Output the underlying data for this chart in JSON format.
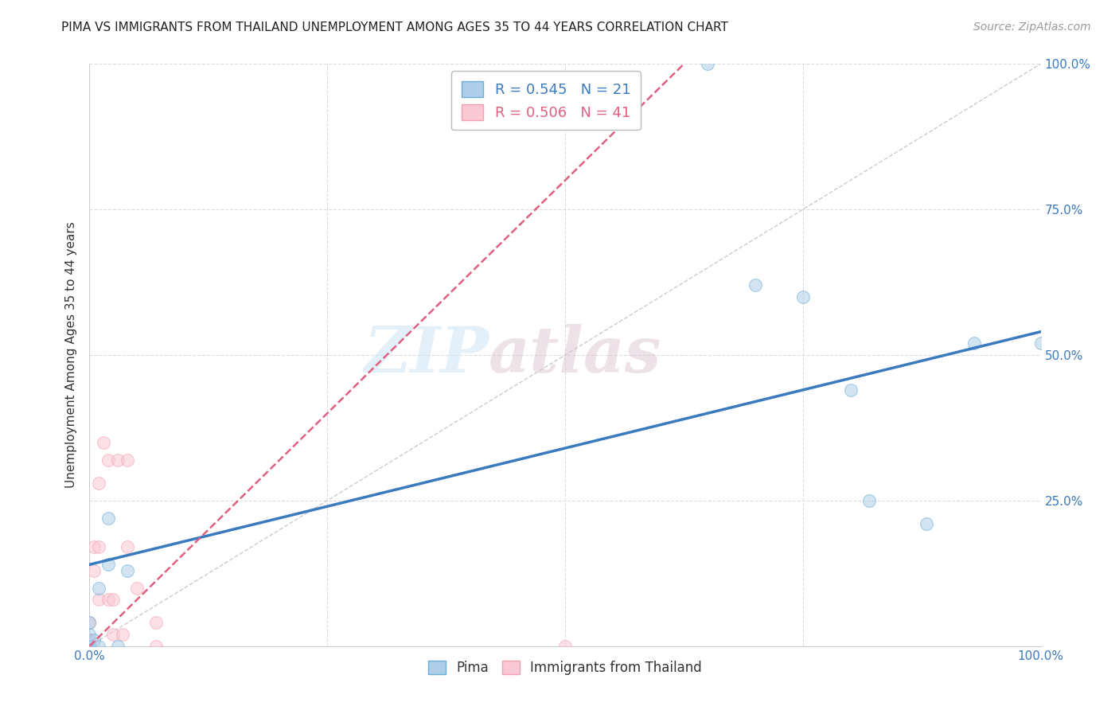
{
  "title": "PIMA VS IMMIGRANTS FROM THAILAND UNEMPLOYMENT AMONG AGES 35 TO 44 YEARS CORRELATION CHART",
  "source": "Source: ZipAtlas.com",
  "ylabel": "Unemployment Among Ages 35 to 44 years",
  "xlim": [
    0,
    1.0
  ],
  "ylim": [
    0,
    1.0
  ],
  "background_color": "#ffffff",
  "watermark_zip": "ZIP",
  "watermark_atlas": "atlas",
  "pima_color_edge": "#6baed6",
  "pima_color_fill": "#aecde8",
  "thailand_color_edge": "#f4a0b0",
  "thailand_color_fill": "#f8c8d4",
  "pima_R": 0.545,
  "pima_N": 21,
  "thailand_R": 0.506,
  "thailand_N": 41,
  "pima_points_x": [
    0.0,
    0.0,
    0.0,
    0.0,
    0.0,
    0.0,
    0.005,
    0.01,
    0.01,
    0.02,
    0.02,
    0.03,
    0.04,
    0.65,
    0.7,
    0.75,
    0.8,
    0.82,
    0.88,
    0.93,
    1.0
  ],
  "pima_points_y": [
    0.0,
    0.0,
    0.0,
    0.0,
    0.02,
    0.04,
    0.01,
    0.0,
    0.1,
    0.14,
    0.22,
    0.0,
    0.13,
    1.0,
    0.62,
    0.6,
    0.44,
    0.25,
    0.21,
    0.52,
    0.52
  ],
  "thailand_points_x": [
    0.0,
    0.0,
    0.0,
    0.0,
    0.0,
    0.0,
    0.0,
    0.0,
    0.0,
    0.0,
    0.0,
    0.0,
    0.0,
    0.0,
    0.0,
    0.0,
    0.0,
    0.0,
    0.0,
    0.0,
    0.0,
    0.0,
    0.0,
    0.005,
    0.005,
    0.01,
    0.01,
    0.01,
    0.015,
    0.02,
    0.02,
    0.025,
    0.025,
    0.03,
    0.035,
    0.04,
    0.04,
    0.05,
    0.07,
    0.07,
    0.5
  ],
  "thailand_points_y": [
    0.0,
    0.0,
    0.0,
    0.0,
    0.0,
    0.0,
    0.0,
    0.0,
    0.0,
    0.0,
    0.0,
    0.0,
    0.0,
    0.0,
    0.0,
    0.0,
    0.0,
    0.0,
    0.01,
    0.01,
    0.01,
    0.01,
    0.04,
    0.13,
    0.17,
    0.08,
    0.17,
    0.28,
    0.35,
    0.08,
    0.32,
    0.02,
    0.08,
    0.32,
    0.02,
    0.17,
    0.32,
    0.1,
    0.04,
    0.0,
    0.0
  ],
  "pima_line_color": "#3a7abf",
  "pima_line_b0": 0.14,
  "pima_line_b1": 0.4,
  "thailand_line_color": "#e06080",
  "thailand_line_b0": 0.0,
  "thailand_line_b1": 1.6,
  "diagonal_color": "#cccccc",
  "grid_color": "#dddddd",
  "legend_pima_label": "Pima",
  "legend_thailand_label": "Immigrants from Thailand",
  "marker_size": 130,
  "marker_alpha": 0.55,
  "title_fontsize": 11,
  "source_fontsize": 10,
  "tick_fontsize": 11,
  "ylabel_fontsize": 11
}
